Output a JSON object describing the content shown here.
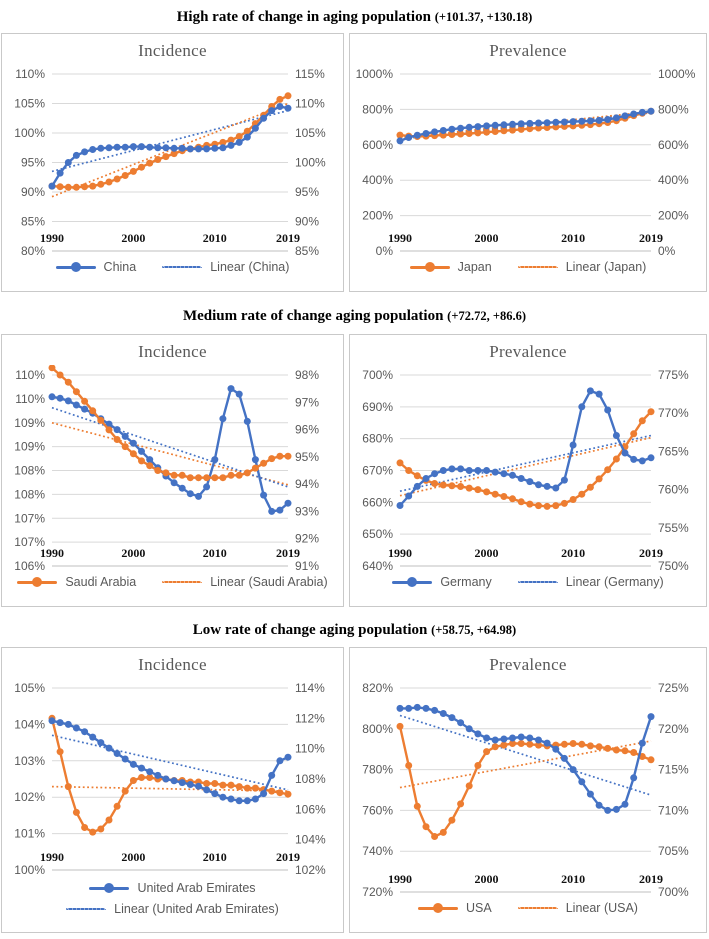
{
  "colors": {
    "series": {
      "blue": "#4472C4",
      "orange": "#ED7D31"
    },
    "gridline": "#D9D9D9",
    "axis_line": "#BFBFBF",
    "axis_label": "#595959",
    "chart_title": "#595959",
    "section_title": "#000000",
    "panel_border": "#C9C9C9",
    "background": "#FFFFFF"
  },
  "sections": [
    {
      "title": "High rate of change in aging population",
      "note": "(+101.37, +130.18)"
    },
    {
      "title": "Medium rate of change aging population",
      "note": "(+72.72, +86.6)"
    },
    {
      "title": "Low rate of change aging population",
      "note": "(+58.75, +64.98)"
    }
  ],
  "chart_data": [
    {
      "id": "high-incidence",
      "type": "line",
      "section": "High rate of change in aging population",
      "title": "Incidence",
      "x_start": 1990,
      "x_end": 2019,
      "x_tick_labels": [
        "1990",
        "2000",
        "2010",
        "2019"
      ],
      "x_tick_indices": [
        0,
        10,
        20,
        29
      ],
      "left_axis": {
        "min": 80,
        "max": 110,
        "labels": [
          "110%",
          "105%",
          "100%",
          "95%",
          "90%",
          "85%",
          "80%"
        ]
      },
      "right_axis": {
        "min": 85,
        "max": 115,
        "labels": [
          "115%",
          "110%",
          "105%",
          "100%",
          "95%",
          "90%",
          "85%"
        ]
      },
      "series": [
        {
          "name": "Linear (China)",
          "color": "blue",
          "axis": "left",
          "style": "dotted",
          "trend": true,
          "values": [
            93.5,
            103.8
          ]
        },
        {
          "name": "Linear (Japan)",
          "color": "orange",
          "axis": "right",
          "style": "dotted",
          "trend": true,
          "values": [
            94.2,
            110
          ]
        },
        {
          "name": "Japan",
          "color": "orange",
          "axis": "right",
          "style": "solid",
          "markers": true,
          "values": [
            96,
            95.9,
            95.8,
            95.8,
            95.9,
            96,
            96.3,
            96.7,
            97.2,
            97.8,
            98.5,
            99.2,
            99.9,
            100.5,
            101,
            101.5,
            102,
            102.3,
            102.6,
            102.9,
            103.1,
            103.4,
            103.8,
            104.4,
            105.3,
            106.6,
            108,
            109.5,
            110.7,
            111.3
          ]
        },
        {
          "name": "China",
          "color": "blue",
          "axis": "left",
          "style": "solid",
          "markers": true,
          "values": [
            91,
            93.2,
            95,
            96.2,
            96.8,
            97.2,
            97.4,
            97.5,
            97.6,
            97.6,
            97.7,
            97.7,
            97.6,
            97.5,
            97.5,
            97.4,
            97.4,
            97.3,
            97.3,
            97.3,
            97.4,
            97.5,
            97.9,
            98.4,
            99.3,
            100.8,
            102.5,
            103.8,
            104.5,
            104.2
          ]
        }
      ],
      "legend": {
        "rows": 1,
        "entries": [
          {
            "label": "China",
            "color": "blue",
            "style": "solid"
          },
          {
            "label": "Linear (China)",
            "color": "blue",
            "style": "dotted"
          }
        ]
      }
    },
    {
      "id": "high-prevalence",
      "type": "line",
      "section": "High rate of change in aging population",
      "title": "Prevalence",
      "x_start": 1990,
      "x_end": 2019,
      "x_tick_labels": [
        "1990",
        "2000",
        "2010",
        "2019"
      ],
      "x_tick_indices": [
        0,
        10,
        20,
        29
      ],
      "left_axis": {
        "min": 0,
        "max": 1000,
        "labels": [
          "1000%",
          "800%",
          "600%",
          "400%",
          "200%",
          "0%"
        ]
      },
      "right_axis": {
        "min": 0,
        "max": 1000,
        "labels": [
          "1000%",
          "800%",
          "600%",
          "400%",
          "200%",
          "0%"
        ]
      },
      "series": [
        {
          "name": "Linear (China)",
          "color": "blue",
          "axis": "left",
          "style": "dotted",
          "trend": true,
          "values": [
            633,
            781
          ]
        },
        {
          "name": "Linear (Japan)",
          "color": "orange",
          "axis": "right",
          "style": "dotted",
          "trend": true,
          "values": [
            641,
            787
          ]
        },
        {
          "name": "Japan",
          "color": "orange",
          "axis": "right",
          "style": "solid",
          "markers": true,
          "values": [
            655,
            649,
            647,
            649,
            652,
            655,
            658,
            661,
            664,
            667,
            671,
            675,
            679,
            683,
            687,
            691,
            695,
            698,
            701,
            704,
            707,
            710,
            714,
            719,
            726,
            736,
            750,
            765,
            778,
            789
          ]
        },
        {
          "name": "China",
          "color": "blue",
          "axis": "left",
          "style": "solid",
          "markers": true,
          "values": [
            622,
            641,
            654,
            664,
            673,
            681,
            688,
            694,
            699,
            703,
            707,
            710,
            713,
            716,
            719,
            721,
            723,
            725,
            727,
            729,
            731,
            733,
            735,
            738,
            743,
            752,
            763,
            774,
            783,
            790
          ]
        }
      ],
      "legend": {
        "rows": 1,
        "entries": [
          {
            "label": "Japan",
            "color": "orange",
            "style": "solid"
          },
          {
            "label": "Linear (Japan)",
            "color": "orange",
            "style": "dotted"
          }
        ]
      }
    },
    {
      "id": "medium-incidence",
      "type": "line",
      "section": "Medium rate of change aging population",
      "title": "Incidence",
      "x_start": 1990,
      "x_end": 2019,
      "x_tick_labels": [
        "1990",
        "2000",
        "2010",
        "2019"
      ],
      "x_tick_indices": [
        0,
        10,
        20,
        29
      ],
      "left_axis": {
        "min": 106,
        "max": 110,
        "labels": [
          "110%",
          "110%",
          "109%",
          "109%",
          "108%",
          "108%",
          "107%",
          "107%",
          "106%"
        ]
      },
      "right_axis": {
        "min": 91,
        "max": 98,
        "labels": [
          "98%",
          "97%",
          "96%",
          "95%",
          "94%",
          "93%",
          "92%",
          "91%"
        ]
      },
      "series": [
        {
          "name": "Linear (Saudi Arabia)",
          "color": "orange",
          "axis": "left",
          "style": "dotted",
          "trend": true,
          "values": [
            109,
            107.7
          ]
        },
        {
          "name": "Linear (Germany)",
          "color": "blue",
          "axis": "right",
          "style": "dotted",
          "trend": true,
          "values": [
            96.8,
            93.9
          ]
        },
        {
          "name": "Germany",
          "color": "blue",
          "axis": "right",
          "style": "solid",
          "markers": true,
          "values": [
            97.2,
            97.15,
            97.05,
            96.9,
            96.75,
            96.6,
            96.4,
            96.2,
            96,
            95.75,
            95.5,
            95.2,
            94.9,
            94.6,
            94.3,
            94.05,
            93.85,
            93.65,
            93.55,
            93.9,
            94.9,
            96.4,
            97.5,
            97.3,
            96.3,
            94.9,
            93.6,
            93,
            93.05,
            93.3
          ]
        },
        {
          "name": "Saudi Arabia",
          "color": "orange",
          "axis": "left",
          "style": "solid",
          "markers": true,
          "values": [
            110.15,
            110,
            109.85,
            109.65,
            109.45,
            109.25,
            109.05,
            108.85,
            108.65,
            108.5,
            108.35,
            108.2,
            108.1,
            108,
            107.95,
            107.9,
            107.9,
            107.85,
            107.85,
            107.85,
            107.85,
            107.85,
            107.9,
            107.9,
            107.95,
            108.05,
            108.15,
            108.25,
            108.3,
            108.3
          ]
        }
      ],
      "legend": {
        "rows": 1,
        "entries": [
          {
            "label": "Saudi Arabia",
            "color": "orange",
            "style": "solid"
          },
          {
            "label": "Linear (Saudi Arabia)",
            "color": "orange",
            "style": "dotted"
          }
        ]
      }
    },
    {
      "id": "medium-prevalence",
      "type": "line",
      "section": "Medium rate of change aging population",
      "title": "Prevalence",
      "x_start": 1990,
      "x_end": 2019,
      "x_tick_labels": [
        "1990",
        "2000",
        "2010",
        "2019"
      ],
      "x_tick_indices": [
        0,
        10,
        20,
        29
      ],
      "left_axis": {
        "min": 640,
        "max": 700,
        "labels": [
          "700%",
          "690%",
          "680%",
          "670%",
          "660%",
          "650%",
          "640%"
        ]
      },
      "right_axis": {
        "min": 750,
        "max": 775,
        "labels": [
          "775%",
          "770%",
          "765%",
          "760%",
          "755%",
          "750%"
        ]
      },
      "series": [
        {
          "name": "Linear (Germany)",
          "color": "blue",
          "axis": "left",
          "style": "dotted",
          "trend": true,
          "values": [
            663.5,
            681
          ]
        },
        {
          "name": "Linear (Saudi Arabia)",
          "color": "orange",
          "axis": "right",
          "style": "dotted",
          "trend": true,
          "values": [
            759.2,
            766.8
          ]
        },
        {
          "name": "Saudi Arabia",
          "color": "orange",
          "axis": "right",
          "style": "solid",
          "markers": true,
          "values": [
            763.5,
            762.5,
            761.8,
            761.2,
            760.8,
            760.6,
            760.5,
            760.4,
            760.2,
            760,
            759.7,
            759.4,
            759.1,
            758.8,
            758.4,
            758.1,
            757.9,
            757.8,
            757.9,
            758.2,
            758.7,
            759.4,
            760.3,
            761.4,
            762.6,
            764,
            765.6,
            767.3,
            769,
            770.2
          ]
        },
        {
          "name": "Germany",
          "color": "blue",
          "axis": "left",
          "style": "solid",
          "markers": true,
          "values": [
            659,
            662,
            665,
            667.5,
            669,
            670,
            670.5,
            670.5,
            670,
            670,
            670,
            669.5,
            669,
            668.5,
            667.5,
            666.5,
            665.5,
            665,
            664.5,
            667,
            678,
            690,
            695,
            694,
            689,
            681,
            675.5,
            673.5,
            673,
            674
          ]
        }
      ],
      "legend": {
        "rows": 1,
        "entries": [
          {
            "label": "Germany",
            "color": "blue",
            "style": "solid"
          },
          {
            "label": "Linear (Germany)",
            "color": "blue",
            "style": "dotted"
          }
        ]
      }
    },
    {
      "id": "low-incidence",
      "type": "line",
      "section": "Low rate of change aging population",
      "title": "Incidence",
      "x_start": 1990,
      "x_end": 2019,
      "x_tick_labels": [
        "1990",
        "2000",
        "2010",
        "2019"
      ],
      "x_tick_indices": [
        0,
        10,
        20,
        29
      ],
      "left_axis": {
        "min": 100,
        "max": 105,
        "labels": [
          "105%",
          "104%",
          "103%",
          "102%",
          "101%",
          "100%"
        ]
      },
      "right_axis": {
        "min": 102,
        "max": 114,
        "labels": [
          "114%",
          "112%",
          "110%",
          "108%",
          "106%",
          "104%",
          "102%"
        ]
      },
      "series": [
        {
          "name": "Linear (United Arab Emirates)",
          "color": "blue",
          "axis": "left",
          "style": "dotted",
          "trend": true,
          "values": [
            103.7,
            102.2
          ]
        },
        {
          "name": "Linear (USA)",
          "color": "orange",
          "axis": "right",
          "style": "dotted",
          "trend": true,
          "values": [
            107.5,
            107.2
          ]
        },
        {
          "name": "USA",
          "color": "orange",
          "axis": "right",
          "style": "solid",
          "markers": true,
          "values": [
            112,
            109.8,
            107.5,
            105.8,
            104.8,
            104.5,
            104.7,
            105.3,
            106.2,
            107.2,
            107.9,
            108.1,
            108.1,
            108,
            108,
            107.9,
            107.9,
            107.8,
            107.8,
            107.7,
            107.7,
            107.6,
            107.6,
            107.5,
            107.4,
            107.4,
            107.3,
            107.2,
            107.1,
            107
          ]
        },
        {
          "name": "United Arab Emirates",
          "color": "blue",
          "axis": "left",
          "style": "solid",
          "markers": true,
          "values": [
            104.1,
            104.05,
            104,
            103.9,
            103.8,
            103.65,
            103.5,
            103.35,
            103.2,
            103.05,
            102.9,
            102.8,
            102.7,
            102.6,
            102.5,
            102.45,
            102.4,
            102.35,
            102.3,
            102.2,
            102.1,
            102,
            101.95,
            101.9,
            101.9,
            101.95,
            102.1,
            102.6,
            103,
            103.1
          ]
        }
      ],
      "legend": {
        "rows": 2,
        "entries": [
          {
            "label": "United Arab Emirates",
            "color": "blue",
            "style": "solid"
          },
          {
            "label": "Linear (United Arab Emirates)",
            "color": "blue",
            "style": "dotted"
          }
        ]
      }
    },
    {
      "id": "low-prevalence",
      "type": "line",
      "section": "Low rate of change aging population",
      "title": "Prevalence",
      "x_start": 1990,
      "x_end": 2019,
      "x_tick_labels": [
        "1990",
        "2000",
        "2010",
        "2019"
      ],
      "x_tick_indices": [
        0,
        10,
        20,
        29
      ],
      "left_axis": {
        "min": 720,
        "max": 820,
        "labels": [
          "820%",
          "800%",
          "780%",
          "760%",
          "740%",
          "720%"
        ]
      },
      "right_axis": {
        "min": 700,
        "max": 725,
        "labels": [
          "725%",
          "720%",
          "715%",
          "710%",
          "705%",
          "700%"
        ]
      },
      "series": [
        {
          "name": "Linear (United Arab Emirates)",
          "color": "blue",
          "axis": "left",
          "style": "dotted",
          "trend": true,
          "values": [
            806.5,
            767.5
          ]
        },
        {
          "name": "Linear (USA)",
          "color": "orange",
          "axis": "right",
          "style": "dotted",
          "trend": true,
          "values": [
            712.8,
            718.5
          ]
        },
        {
          "name": "USA",
          "color": "orange",
          "axis": "right",
          "style": "solid",
          "markers": true,
          "values": [
            720.3,
            715.5,
            710.5,
            708,
            706.8,
            707.3,
            708.8,
            710.8,
            713,
            715.5,
            717.2,
            717.8,
            718,
            718.2,
            718.2,
            718.1,
            718,
            717.9,
            718,
            718.1,
            718.2,
            718.1,
            717.9,
            717.8,
            717.6,
            717.4,
            717.3,
            717.1,
            716.6,
            716.2
          ]
        },
        {
          "name": "United Arab Emirates",
          "color": "blue",
          "axis": "left",
          "style": "solid",
          "markers": true,
          "values": [
            810,
            810,
            810.5,
            810,
            809,
            807.5,
            805.5,
            803,
            800,
            797.5,
            795.5,
            794.5,
            795,
            795.5,
            796,
            795.5,
            794.5,
            793,
            790,
            785.5,
            780,
            774,
            768,
            762.5,
            760,
            760.5,
            763,
            776,
            793,
            806
          ]
        }
      ],
      "legend": {
        "rows": 1,
        "entries": [
          {
            "label": "USA",
            "color": "orange",
            "style": "solid"
          },
          {
            "label": "Linear (USA)",
            "color": "orange",
            "style": "dotted"
          }
        ]
      }
    }
  ]
}
